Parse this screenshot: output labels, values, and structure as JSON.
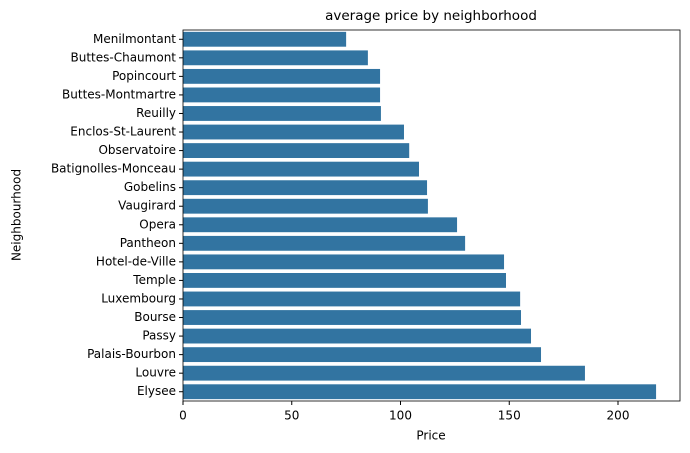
{
  "chart_data": {
    "type": "barh",
    "title": "average price by neighborhood",
    "x_label": "Price",
    "y_label": "Neighbourhood",
    "categories": [
      "Menilmontant",
      "Buttes-Chaumont",
      "Popincourt",
      "Buttes-Montmartre",
      "Reuilly",
      "Enclos-St-Laurent",
      "Observatoire",
      "Batignolles-Monceau",
      "Gobelins",
      "Vaugirard",
      "Opera",
      "Pantheon",
      "Hotel-de-Ville",
      "Temple",
      "Luxembourg",
      "Bourse",
      "Passy",
      "Palais-Bourbon",
      "Louvre",
      "Elysee"
    ],
    "values": [
      75,
      85,
      90.6,
      90.6,
      91,
      101.6,
      104,
      108.5,
      112.2,
      112.6,
      126,
      129.7,
      147.6,
      148.5,
      155,
      155.4,
      160,
      164.6,
      184.8,
      217.5
    ],
    "color": "#3274a1",
    "xlim": [
      0,
      228.5
    ],
    "xticks": [
      0,
      50,
      100,
      150,
      200
    ]
  }
}
